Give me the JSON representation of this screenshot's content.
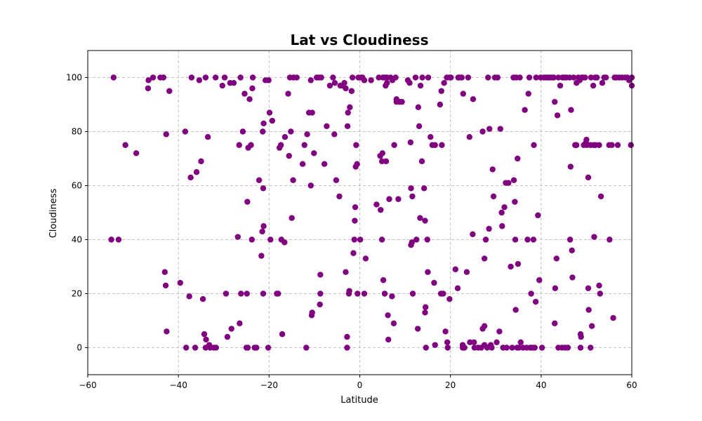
{
  "chart_data": {
    "type": "scatter",
    "title": "Lat vs Cloudiness",
    "xlabel": "Latitude",
    "ylabel": "Cloudiness",
    "xlim": [
      -60,
      60
    ],
    "ylim": [
      -10,
      110
    ],
    "xticks": [
      -60,
      -40,
      -20,
      0,
      20,
      40,
      60
    ],
    "yticks": [
      0,
      20,
      40,
      60,
      80,
      100
    ],
    "grid": true,
    "marker_color": "#800080",
    "grid_color": "#b0b0b0",
    "points": [
      [
        -54.3,
        100
      ],
      [
        -54.8,
        40
      ],
      [
        -53.2,
        40
      ],
      [
        -51.7,
        75
      ],
      [
        -49.3,
        72
      ],
      [
        -46.7,
        96
      ],
      [
        -46.6,
        99
      ],
      [
        -45.6,
        100
      ],
      [
        -44.0,
        100
      ],
      [
        -43.3,
        100
      ],
      [
        -42.7,
        79
      ],
      [
        -42.0,
        95
      ],
      [
        -43.0,
        28
      ],
      [
        -42.8,
        23
      ],
      [
        -42.6,
        6
      ],
      [
        -39.6,
        24
      ],
      [
        -38.5,
        80
      ],
      [
        -38.3,
        0
      ],
      [
        -37.6,
        19
      ],
      [
        -37.3,
        63
      ],
      [
        -37.1,
        100
      ],
      [
        -36.3,
        0
      ],
      [
        -36.0,
        65
      ],
      [
        -35.4,
        99
      ],
      [
        -35.0,
        69
      ],
      [
        -34.6,
        18
      ],
      [
        -34.3,
        5
      ],
      [
        -33.9,
        3
      ],
      [
        -34.0,
        0
      ],
      [
        -33.5,
        78
      ],
      [
        -33.2,
        1
      ],
      [
        -33.0,
        0
      ],
      [
        -32.2,
        0
      ],
      [
        -31.7,
        0
      ],
      [
        -31.8,
        100
      ],
      [
        -34.0,
        100
      ],
      [
        -30.3,
        97
      ],
      [
        -29.8,
        100
      ],
      [
        -29.5,
        20
      ],
      [
        -29.2,
        4
      ],
      [
        -28.6,
        98
      ],
      [
        -28.3,
        7
      ],
      [
        -27.8,
        98
      ],
      [
        -26.9,
        41
      ],
      [
        -26.5,
        9
      ],
      [
        -26.6,
        75
      ],
      [
        -26.3,
        100
      ],
      [
        -26.2,
        20
      ],
      [
        -25.8,
        80
      ],
      [
        -25.4,
        94
      ],
      [
        -25.0,
        0
      ],
      [
        -24.9,
        20
      ],
      [
        -24.8,
        54
      ],
      [
        -24.7,
        0
      ],
      [
        -24.6,
        74
      ],
      [
        -24.3,
        92
      ],
      [
        -24.0,
        75
      ],
      [
        -23.8,
        40
      ],
      [
        -23.6,
        100
      ],
      [
        -23.7,
        96
      ],
      [
        -23.2,
        0
      ],
      [
        -22.8,
        0
      ],
      [
        -22.2,
        62
      ],
      [
        -21.7,
        34
      ],
      [
        -21.4,
        80
      ],
      [
        -21.5,
        43
      ],
      [
        -21.2,
        83
      ],
      [
        -21.3,
        59
      ],
      [
        -21.2,
        45
      ],
      [
        -21.3,
        20
      ],
      [
        -20.8,
        99
      ],
      [
        -20.2,
        0
      ],
      [
        -20.1,
        99
      ],
      [
        -19.9,
        87
      ],
      [
        -19.7,
        40
      ],
      [
        -19.3,
        84
      ],
      [
        -18.3,
        20
      ],
      [
        -18.0,
        20
      ],
      [
        -17.7,
        74
      ],
      [
        -17.4,
        75
      ],
      [
        -17.3,
        40
      ],
      [
        -17.1,
        5
      ],
      [
        -16.6,
        39
      ],
      [
        -16.5,
        78
      ],
      [
        -15.8,
        94
      ],
      [
        -15.4,
        100
      ],
      [
        -15.6,
        71
      ],
      [
        -15.2,
        80
      ],
      [
        -15.0,
        48
      ],
      [
        -14.7,
        62
      ],
      [
        -14.6,
        100
      ],
      [
        -13.9,
        100
      ],
      [
        -12.6,
        68
      ],
      [
        -12.2,
        75
      ],
      [
        -11.8,
        0
      ],
      [
        -11.6,
        79
      ],
      [
        -11.2,
        87
      ],
      [
        -10.8,
        99
      ],
      [
        -10.5,
        87
      ],
      [
        -10.8,
        60
      ],
      [
        -10.6,
        12
      ],
      [
        -10.5,
        13
      ],
      [
        -10.1,
        72
      ],
      [
        -9.5,
        100
      ],
      [
        -9.0,
        100
      ],
      [
        -8.7,
        27
      ],
      [
        -8.7,
        20
      ],
      [
        -8.8,
        16
      ],
      [
        -8.5,
        100
      ],
      [
        -7.8,
        68
      ],
      [
        -7.3,
        82
      ],
      [
        -6.6,
        97
      ],
      [
        -5.9,
        100
      ],
      [
        -5.6,
        79
      ],
      [
        -5.5,
        98
      ],
      [
        -5.2,
        62
      ],
      [
        -4.5,
        56
      ],
      [
        -4.3,
        97
      ],
      [
        -3.8,
        97
      ],
      [
        -3.4,
        98
      ],
      [
        -3.1,
        96
      ],
      [
        -3.1,
        28
      ],
      [
        -2.8,
        0
      ],
      [
        -2.8,
        4
      ],
      [
        -2.7,
        82
      ],
      [
        -2.6,
        87
      ],
      [
        -2.4,
        20
      ],
      [
        -2.3,
        21
      ],
      [
        -2.2,
        89
      ],
      [
        -1.8,
        95
      ],
      [
        -1.6,
        100
      ],
      [
        -1.4,
        35
      ],
      [
        -1.1,
        47
      ],
      [
        -1.0,
        52
      ],
      [
        -1.2,
        40
      ],
      [
        -0.9,
        67
      ],
      [
        -0.8,
        75
      ],
      [
        -0.6,
        68
      ],
      [
        -0.3,
        100
      ],
      [
        -0.5,
        20
      ],
      [
        0.1,
        40
      ],
      [
        0.3,
        100
      ],
      [
        0.6,
        100
      ],
      [
        1.0,
        99
      ],
      [
        1.0,
        20
      ],
      [
        1.3,
        33
      ],
      [
        2.5,
        99
      ],
      [
        3.7,
        53
      ],
      [
        4.2,
        100
      ],
      [
        4.5,
        71
      ],
      [
        4.6,
        51
      ],
      [
        4.9,
        40
      ],
      [
        4.9,
        69
      ],
      [
        5.0,
        72
      ],
      [
        5.1,
        100
      ],
      [
        5.2,
        25
      ],
      [
        5.6,
        100
      ],
      [
        5.5,
        20
      ],
      [
        5.7,
        97
      ],
      [
        5.8,
        69
      ],
      [
        6.0,
        98
      ],
      [
        6.0,
        100
      ],
      [
        6.2,
        12
      ],
      [
        6.3,
        3
      ],
      [
        6.5,
        55
      ],
      [
        6.8,
        100
      ],
      [
        7.1,
        19
      ],
      [
        7.2,
        99
      ],
      [
        7.5,
        9
      ],
      [
        7.6,
        75
      ],
      [
        7.9,
        100
      ],
      [
        8.1,
        91
      ],
      [
        8.1,
        92
      ],
      [
        8.5,
        55
      ],
      [
        8.8,
        91
      ],
      [
        9.3,
        91
      ],
      [
        10.6,
        99
      ],
      [
        11.0,
        98
      ],
      [
        11.2,
        76
      ],
      [
        11.3,
        59
      ],
      [
        11.3,
        38
      ],
      [
        11.5,
        39
      ],
      [
        11.6,
        56
      ],
      [
        11.7,
        20
      ],
      [
        12.3,
        100
      ],
      [
        12.5,
        40
      ],
      [
        12.8,
        7
      ],
      [
        12.9,
        89
      ],
      [
        13.1,
        82
      ],
      [
        13.3,
        48
      ],
      [
        13.4,
        97
      ],
      [
        13.7,
        69
      ],
      [
        13.8,
        100
      ],
      [
        14.2,
        59
      ],
      [
        14.4,
        47
      ],
      [
        14.5,
        15
      ],
      [
        14.4,
        13
      ],
      [
        14.6,
        0
      ],
      [
        14.9,
        40
      ],
      [
        15.0,
        28
      ],
      [
        15.1,
        100
      ],
      [
        15.6,
        78
      ],
      [
        16.0,
        75
      ],
      [
        16.4,
        24
      ],
      [
        16.6,
        75
      ],
      [
        16.6,
        1
      ],
      [
        18.0,
        95
      ],
      [
        17.7,
        90
      ],
      [
        17.9,
        20
      ],
      [
        18.4,
        20
      ],
      [
        18.1,
        75
      ],
      [
        18.6,
        98
      ],
      [
        18.9,
        6
      ],
      [
        19.2,
        100
      ],
      [
        19.3,
        2
      ],
      [
        19.4,
        0
      ],
      [
        19.8,
        18
      ],
      [
        19.8,
        100
      ],
      [
        20.1,
        100
      ],
      [
        21.1,
        29
      ],
      [
        21.6,
        22
      ],
      [
        21.7,
        100
      ],
      [
        22.0,
        100
      ],
      [
        22.5,
        100
      ],
      [
        22.7,
        1
      ],
      [
        22.7,
        0
      ],
      [
        22.8,
        94
      ],
      [
        23.1,
        0
      ],
      [
        23.6,
        28
      ],
      [
        23.9,
        100
      ],
      [
        24.2,
        78
      ],
      [
        24.3,
        2
      ],
      [
        24.9,
        42
      ],
      [
        25.0,
        92
      ],
      [
        25.2,
        2
      ],
      [
        25.3,
        0
      ],
      [
        26.1,
        0
      ],
      [
        26.8,
        0
      ],
      [
        27.1,
        80
      ],
      [
        27.5,
        1
      ],
      [
        27.1,
        7
      ],
      [
        27.5,
        8
      ],
      [
        27.5,
        33
      ],
      [
        27.8,
        40
      ],
      [
        28.1,
        0
      ],
      [
        28.3,
        100
      ],
      [
        28.5,
        44
      ],
      [
        28.6,
        81
      ],
      [
        28.9,
        1
      ],
      [
        29.1,
        0
      ],
      [
        29.3,
        66
      ],
      [
        29.5,
        56
      ],
      [
        29.8,
        100
      ],
      [
        30.2,
        2
      ],
      [
        30.4,
        100
      ],
      [
        30.8,
        6
      ],
      [
        31.0,
        81
      ],
      [
        31.3,
        50
      ],
      [
        31.4,
        45
      ],
      [
        31.6,
        0
      ],
      [
        31.9,
        52
      ],
      [
        32.2,
        61
      ],
      [
        32.4,
        0
      ],
      [
        32.8,
        61
      ],
      [
        33.3,
        30
      ],
      [
        33.6,
        0
      ],
      [
        33.9,
        100
      ],
      [
        34.0,
        62
      ],
      [
        34.2,
        54
      ],
      [
        34.4,
        14
      ],
      [
        34.3,
        40
      ],
      [
        34.5,
        100
      ],
      [
        34.7,
        0
      ],
      [
        34.8,
        70
      ],
      [
        34.9,
        31
      ],
      [
        35.1,
        0
      ],
      [
        35.3,
        100
      ],
      [
        35.5,
        2
      ],
      [
        36.0,
        0
      ],
      [
        36.4,
        88
      ],
      [
        36.8,
        0
      ],
      [
        37.0,
        40
      ],
      [
        37.2,
        94
      ],
      [
        37.4,
        100
      ],
      [
        37.6,
        0
      ],
      [
        37.8,
        20
      ],
      [
        38.1,
        0
      ],
      [
        38.3,
        40
      ],
      [
        38.4,
        75
      ],
      [
        38.6,
        0
      ],
      [
        38.8,
        17
      ],
      [
        38.9,
        100
      ],
      [
        39.3,
        49
      ],
      [
        39.6,
        25
      ],
      [
        39.9,
        100
      ],
      [
        40.2,
        0
      ],
      [
        40.6,
        100
      ],
      [
        41.1,
        100
      ],
      [
        41.6,
        100
      ],
      [
        41.9,
        100
      ],
      [
        42.4,
        100
      ],
      [
        42.8,
        100
      ],
      [
        43.0,
        91
      ],
      [
        43.0,
        9
      ],
      [
        43.1,
        22
      ],
      [
        43.4,
        33
      ],
      [
        43.6,
        86
      ],
      [
        43.8,
        100
      ],
      [
        43.8,
        0
      ],
      [
        44.2,
        97
      ],
      [
        44.6,
        0
      ],
      [
        44.7,
        100
      ],
      [
        45.1,
        100
      ],
      [
        45.3,
        0
      ],
      [
        45.6,
        100
      ],
      [
        45.9,
        0
      ],
      [
        46.3,
        100
      ],
      [
        46.4,
        40
      ],
      [
        46.5,
        67
      ],
      [
        46.8,
        36
      ],
      [
        46.6,
        88
      ],
      [
        46.9,
        26
      ],
      [
        47.2,
        100
      ],
      [
        47.5,
        75
      ],
      [
        47.8,
        98
      ],
      [
        47.8,
        75
      ],
      [
        48.2,
        100
      ],
      [
        48.5,
        99
      ],
      [
        48.7,
        5
      ],
      [
        48.7,
        0
      ],
      [
        48.8,
        4
      ],
      [
        49.0,
        100
      ],
      [
        49.2,
        100
      ],
      [
        49.4,
        75
      ],
      [
        49.7,
        100
      ],
      [
        49.9,
        76
      ],
      [
        50.0,
        77
      ],
      [
        50.1,
        75
      ],
      [
        50.4,
        63
      ],
      [
        50.4,
        22
      ],
      [
        50.5,
        14
      ],
      [
        50.9,
        75
      ],
      [
        50.9,
        0
      ],
      [
        51.0,
        100
      ],
      [
        51.2,
        8
      ],
      [
        51.5,
        97
      ],
      [
        51.6,
        75
      ],
      [
        51.7,
        41
      ],
      [
        51.9,
        100
      ],
      [
        52.0,
        75
      ],
      [
        52.3,
        100
      ],
      [
        52.8,
        75
      ],
      [
        52.8,
        23
      ],
      [
        53.0,
        20
      ],
      [
        53.2,
        56
      ],
      [
        53.5,
        98
      ],
      [
        53.9,
        100
      ],
      [
        54.3,
        100
      ],
      [
        55.0,
        75
      ],
      [
        55.1,
        40
      ],
      [
        55.6,
        75
      ],
      [
        55.9,
        11
      ],
      [
        56.2,
        100
      ],
      [
        56.6,
        100
      ],
      [
        56.9,
        75
      ],
      [
        57.2,
        100
      ],
      [
        57.8,
        100
      ],
      [
        58.5,
        100
      ],
      [
        59.0,
        100
      ],
      [
        59.4,
        99
      ],
      [
        59.8,
        75
      ],
      [
        60.0,
        100
      ],
      [
        60.0,
        97
      ]
    ]
  }
}
